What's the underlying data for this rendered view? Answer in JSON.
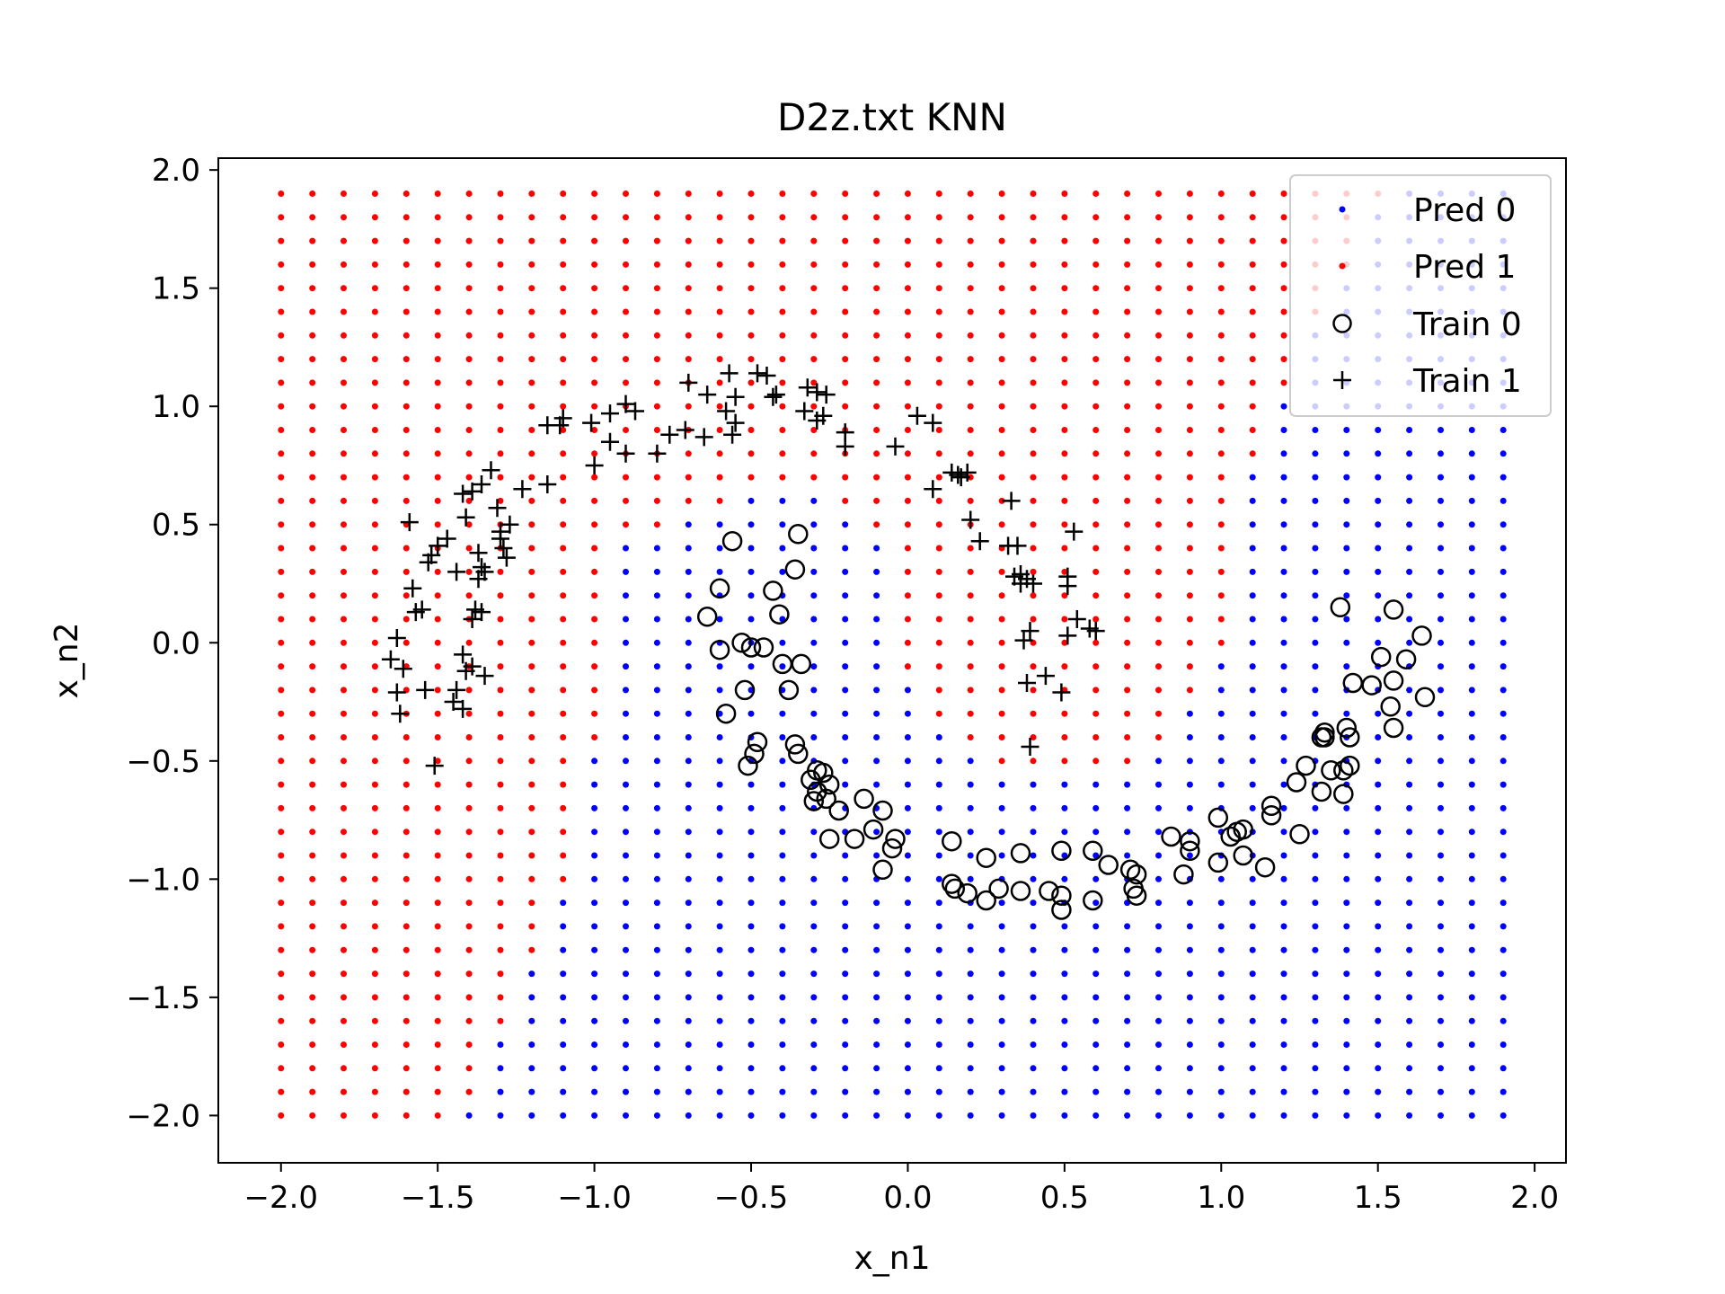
{
  "chart_data": {
    "type": "scatter",
    "title": "D2z.txt KNN",
    "xlabel": "x_n1",
    "ylabel": "x_n2",
    "xlim": [
      -2.2,
      2.1
    ],
    "ylim": [
      -2.2,
      2.05
    ],
    "xticks": [
      "−2.0",
      "−1.5",
      "−1.0",
      "−0.5",
      "0.0",
      "0.5",
      "1.0",
      "1.5",
      "2.0"
    ],
    "xtick_values": [
      -2.0,
      -1.5,
      -1.0,
      -0.5,
      0.0,
      0.5,
      1.0,
      1.5,
      2.0
    ],
    "yticks": [
      "2.0",
      "1.5",
      "1.0",
      "0.5",
      "0.0",
      "−0.5",
      "−1.0",
      "−1.5",
      "−2.0"
    ],
    "ytick_values": [
      2.0,
      1.5,
      1.0,
      0.5,
      0.0,
      -0.5,
      -1.0,
      -1.5,
      -2.0
    ],
    "grid": false,
    "legend_position": "top-right",
    "prediction_grid": {
      "x_start": -2.0,
      "x_end": 1.9,
      "x_step": 0.1,
      "y_start": -2.0,
      "y_end": 1.9,
      "y_step": 0.1,
      "class_colors": {
        "0": "#0000ff",
        "1": "#ff0000"
      }
    },
    "series": [
      {
        "name": "Pred 0",
        "marker": "dot",
        "color": "#0000ff"
      },
      {
        "name": "Pred 1",
        "marker": "dot",
        "color": "#ff0000"
      },
      {
        "name": "Train 0",
        "marker": "circle",
        "color": "#000000",
        "points": [
          [
            -0.56,
            0.43
          ],
          [
            -0.35,
            0.46
          ],
          [
            -0.36,
            0.31
          ],
          [
            -0.43,
            0.22
          ],
          [
            -0.41,
            0.12
          ],
          [
            -0.6,
            0.23
          ],
          [
            -0.64,
            0.11
          ],
          [
            -0.53,
            0.0
          ],
          [
            -0.5,
            -0.02
          ],
          [
            -0.6,
            -0.03
          ],
          [
            -0.46,
            -0.02
          ],
          [
            -0.4,
            -0.09
          ],
          [
            -0.34,
            -0.09
          ],
          [
            -0.52,
            -0.2
          ],
          [
            -0.38,
            -0.2
          ],
          [
            -0.58,
            -0.3
          ],
          [
            -0.48,
            -0.42
          ],
          [
            -0.36,
            -0.43
          ],
          [
            -0.49,
            -0.47
          ],
          [
            -0.35,
            -0.47
          ],
          [
            -0.51,
            -0.52
          ],
          [
            -0.31,
            -0.58
          ],
          [
            -0.29,
            -0.54
          ],
          [
            -0.27,
            -0.55
          ],
          [
            -0.29,
            -0.63
          ],
          [
            -0.25,
            -0.6
          ],
          [
            -0.3,
            -0.67
          ],
          [
            -0.26,
            -0.66
          ],
          [
            -0.22,
            -0.71
          ],
          [
            -0.14,
            -0.66
          ],
          [
            -0.08,
            -0.71
          ],
          [
            -0.11,
            -0.79
          ],
          [
            -0.25,
            -0.83
          ],
          [
            -0.17,
            -0.83
          ],
          [
            -0.04,
            -0.83
          ],
          [
            -0.05,
            -0.87
          ],
          [
            -0.08,
            -0.96
          ],
          [
            0.14,
            -0.84
          ],
          [
            0.25,
            -0.91
          ],
          [
            0.36,
            -0.89
          ],
          [
            0.14,
            -1.02
          ],
          [
            0.15,
            -1.04
          ],
          [
            0.19,
            -1.06
          ],
          [
            0.29,
            -1.04
          ],
          [
            0.25,
            -1.09
          ],
          [
            0.36,
            -1.05
          ],
          [
            0.45,
            -1.05
          ],
          [
            0.49,
            -1.07
          ],
          [
            0.49,
            -1.13
          ],
          [
            0.49,
            -0.88
          ],
          [
            0.59,
            -0.88
          ],
          [
            0.64,
            -0.94
          ],
          [
            0.59,
            -1.09
          ],
          [
            0.71,
            -0.96
          ],
          [
            0.73,
            -0.98
          ],
          [
            0.72,
            -1.04
          ],
          [
            0.73,
            -1.07
          ],
          [
            0.84,
            -0.82
          ],
          [
            0.9,
            -0.84
          ],
          [
            0.9,
            -0.88
          ],
          [
            0.88,
            -0.98
          ],
          [
            0.99,
            -0.74
          ],
          [
            1.03,
            -0.82
          ],
          [
            1.05,
            -0.8
          ],
          [
            1.07,
            -0.79
          ],
          [
            1.07,
            -0.9
          ],
          [
            0.99,
            -0.93
          ],
          [
            1.14,
            -0.95
          ],
          [
            1.16,
            -0.69
          ],
          [
            1.16,
            -0.73
          ],
          [
            1.24,
            -0.59
          ],
          [
            1.27,
            -0.52
          ],
          [
            1.32,
            -0.4
          ],
          [
            1.33,
            -0.38
          ],
          [
            1.33,
            -0.4
          ],
          [
            1.35,
            -0.54
          ],
          [
            1.39,
            -0.54
          ],
          [
            1.4,
            -0.36
          ],
          [
            1.41,
            -0.4
          ],
          [
            1.41,
            -0.52
          ],
          [
            1.32,
            -0.63
          ],
          [
            1.39,
            -0.64
          ],
          [
            1.25,
            -0.81
          ],
          [
            1.38,
            0.15
          ],
          [
            1.42,
            -0.17
          ],
          [
            1.48,
            -0.18
          ],
          [
            1.51,
            -0.06
          ],
          [
            1.55,
            0.14
          ],
          [
            1.59,
            -0.07
          ],
          [
            1.64,
            0.03
          ],
          [
            1.55,
            -0.16
          ],
          [
            1.54,
            -0.27
          ],
          [
            1.55,
            -0.36
          ],
          [
            1.65,
            -0.23
          ]
        ]
      },
      {
        "name": "Train 1",
        "marker": "plus",
        "color": "#000000",
        "points": [
          [
            -1.63,
            0.02
          ],
          [
            -1.65,
            -0.07
          ],
          [
            -1.61,
            -0.11
          ],
          [
            -1.63,
            -0.21
          ],
          [
            -1.62,
            -0.3
          ],
          [
            -1.57,
            0.13
          ],
          [
            -1.55,
            0.14
          ],
          [
            -1.58,
            0.23
          ],
          [
            -1.59,
            0.51
          ],
          [
            -1.52,
            0.37
          ],
          [
            -1.5,
            0.41
          ],
          [
            -1.53,
            0.34
          ],
          [
            -1.54,
            -0.2
          ],
          [
            -1.51,
            -0.52
          ],
          [
            -1.47,
            0.44
          ],
          [
            -1.44,
            0.3
          ],
          [
            -1.42,
            -0.05
          ],
          [
            -1.41,
            -0.12
          ],
          [
            -1.39,
            -0.1
          ],
          [
            -1.44,
            -0.2
          ],
          [
            -1.45,
            -0.25
          ],
          [
            -1.42,
            -0.28
          ],
          [
            -1.42,
            0.63
          ],
          [
            -1.39,
            0.64
          ],
          [
            -1.41,
            0.53
          ],
          [
            -1.39,
            0.1
          ],
          [
            -1.38,
            0.14
          ],
          [
            -1.36,
            0.13
          ],
          [
            -1.37,
            0.27
          ],
          [
            -1.36,
            0.32
          ],
          [
            -1.37,
            0.38
          ],
          [
            -1.35,
            -0.14
          ],
          [
            -1.35,
            0.3
          ],
          [
            -1.33,
            0.73
          ],
          [
            -1.36,
            0.67
          ],
          [
            -1.31,
            0.57
          ],
          [
            -1.29,
            0.4
          ],
          [
            -1.3,
            0.44
          ],
          [
            -1.28,
            0.36
          ],
          [
            -1.3,
            0.47
          ],
          [
            -1.27,
            0.5
          ],
          [
            -1.23,
            0.65
          ],
          [
            -1.15,
            0.67
          ],
          [
            -1.15,
            0.92
          ],
          [
            -1.1,
            0.95
          ],
          [
            -1.11,
            0.92
          ],
          [
            -1.01,
            0.93
          ],
          [
            -0.95,
            0.97
          ],
          [
            -0.9,
            1.01
          ],
          [
            -0.87,
            0.98
          ],
          [
            -1.0,
            0.75
          ],
          [
            -0.95,
            0.85
          ],
          [
            -0.9,
            0.8
          ],
          [
            -0.8,
            0.8
          ],
          [
            -0.76,
            0.88
          ],
          [
            -0.71,
            0.9
          ],
          [
            -0.7,
            1.1
          ],
          [
            -0.65,
            0.87
          ],
          [
            -0.64,
            1.05
          ],
          [
            -0.58,
            0.98
          ],
          [
            -0.55,
            1.04
          ],
          [
            -0.55,
            0.93
          ],
          [
            -0.56,
            0.88
          ],
          [
            -0.57,
            1.14
          ],
          [
            -0.48,
            1.14
          ],
          [
            -0.45,
            1.13
          ],
          [
            -0.43,
            1.04
          ],
          [
            -0.42,
            1.05
          ],
          [
            -0.32,
            1.08
          ],
          [
            -0.29,
            1.06
          ],
          [
            -0.26,
            1.05
          ],
          [
            -0.33,
            0.98
          ],
          [
            -0.29,
            0.94
          ],
          [
            -0.27,
            0.96
          ],
          [
            -0.2,
            0.89
          ],
          [
            -0.2,
            0.83
          ],
          [
            -0.04,
            0.83
          ],
          [
            0.03,
            0.96
          ],
          [
            0.08,
            0.93
          ],
          [
            0.08,
            0.65
          ],
          [
            0.14,
            0.72
          ],
          [
            0.16,
            0.71
          ],
          [
            0.17,
            0.7
          ],
          [
            0.19,
            0.72
          ],
          [
            0.2,
            0.52
          ],
          [
            0.23,
            0.43
          ],
          [
            0.32,
            0.41
          ],
          [
            0.33,
            0.6
          ],
          [
            0.35,
            0.41
          ],
          [
            0.34,
            0.28
          ],
          [
            0.36,
            0.29
          ],
          [
            0.36,
            0.25
          ],
          [
            0.38,
            0.27
          ],
          [
            0.4,
            0.25
          ],
          [
            0.37,
            0.01
          ],
          [
            0.39,
            0.05
          ],
          [
            0.38,
            -0.17
          ],
          [
            0.44,
            -0.14
          ],
          [
            0.39,
            -0.44
          ],
          [
            0.49,
            -0.21
          ],
          [
            0.51,
            0.28
          ],
          [
            0.51,
            0.24
          ],
          [
            0.53,
            0.47
          ],
          [
            0.51,
            0.03
          ],
          [
            0.54,
            0.1
          ],
          [
            0.58,
            0.06
          ],
          [
            0.6,
            0.05
          ]
        ]
      }
    ]
  }
}
